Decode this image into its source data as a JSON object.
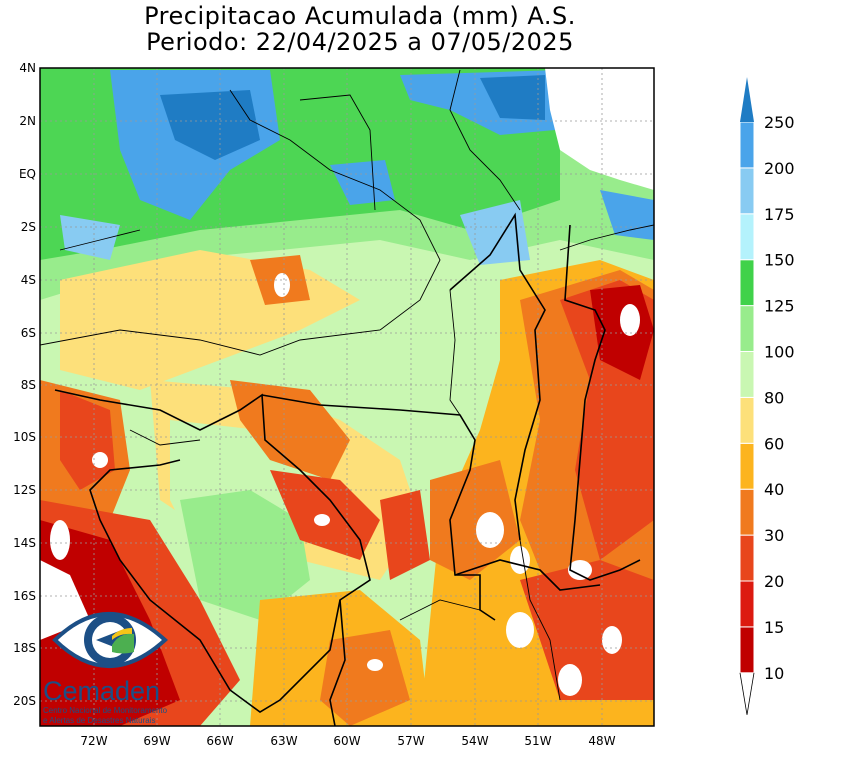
{
  "title": {
    "line1": "Precipitacao Acumulada (mm) A.S.",
    "line2": "Periodo: 22/04/2025 a 07/05/2025"
  },
  "map": {
    "lat_labels": [
      "4N",
      "2N",
      "EQ",
      "2S",
      "4S",
      "6S",
      "8S",
      "10S",
      "12S",
      "14S",
      "16S",
      "18S",
      "20S"
    ],
    "lon_labels": [
      "72W",
      "69W",
      "66W",
      "63W",
      "60W",
      "57W",
      "54W",
      "51W",
      "48W"
    ]
  },
  "colorbar": {
    "levels": [
      "10",
      "15",
      "20",
      "30",
      "40",
      "60",
      "80",
      "100",
      "125",
      "150",
      "175",
      "200",
      "250"
    ],
    "colors": [
      "#c00000",
      "#dc1a10",
      "#e8461c",
      "#f07a1e",
      "#fcb41e",
      "#fde07a",
      "#c9f7b2",
      "#98ec8c",
      "#40d24a",
      "#b4f2fc",
      "#88cbf2",
      "#4aa4ea",
      "#1f7cc4"
    ]
  },
  "logo": {
    "name": "Cemaden",
    "sub1": "Centro Nacional de Monitoramento",
    "sub2": "e Alertas de Desastres Naturais"
  },
  "colors": {
    "red": "#c00000",
    "orange": "#f07a1e",
    "yellow": "#fde07a",
    "lightgreen": "#c9f7b2",
    "green": "#40d24a",
    "blue": "#4aa4ea",
    "darkblue": "#1f7cc4"
  }
}
